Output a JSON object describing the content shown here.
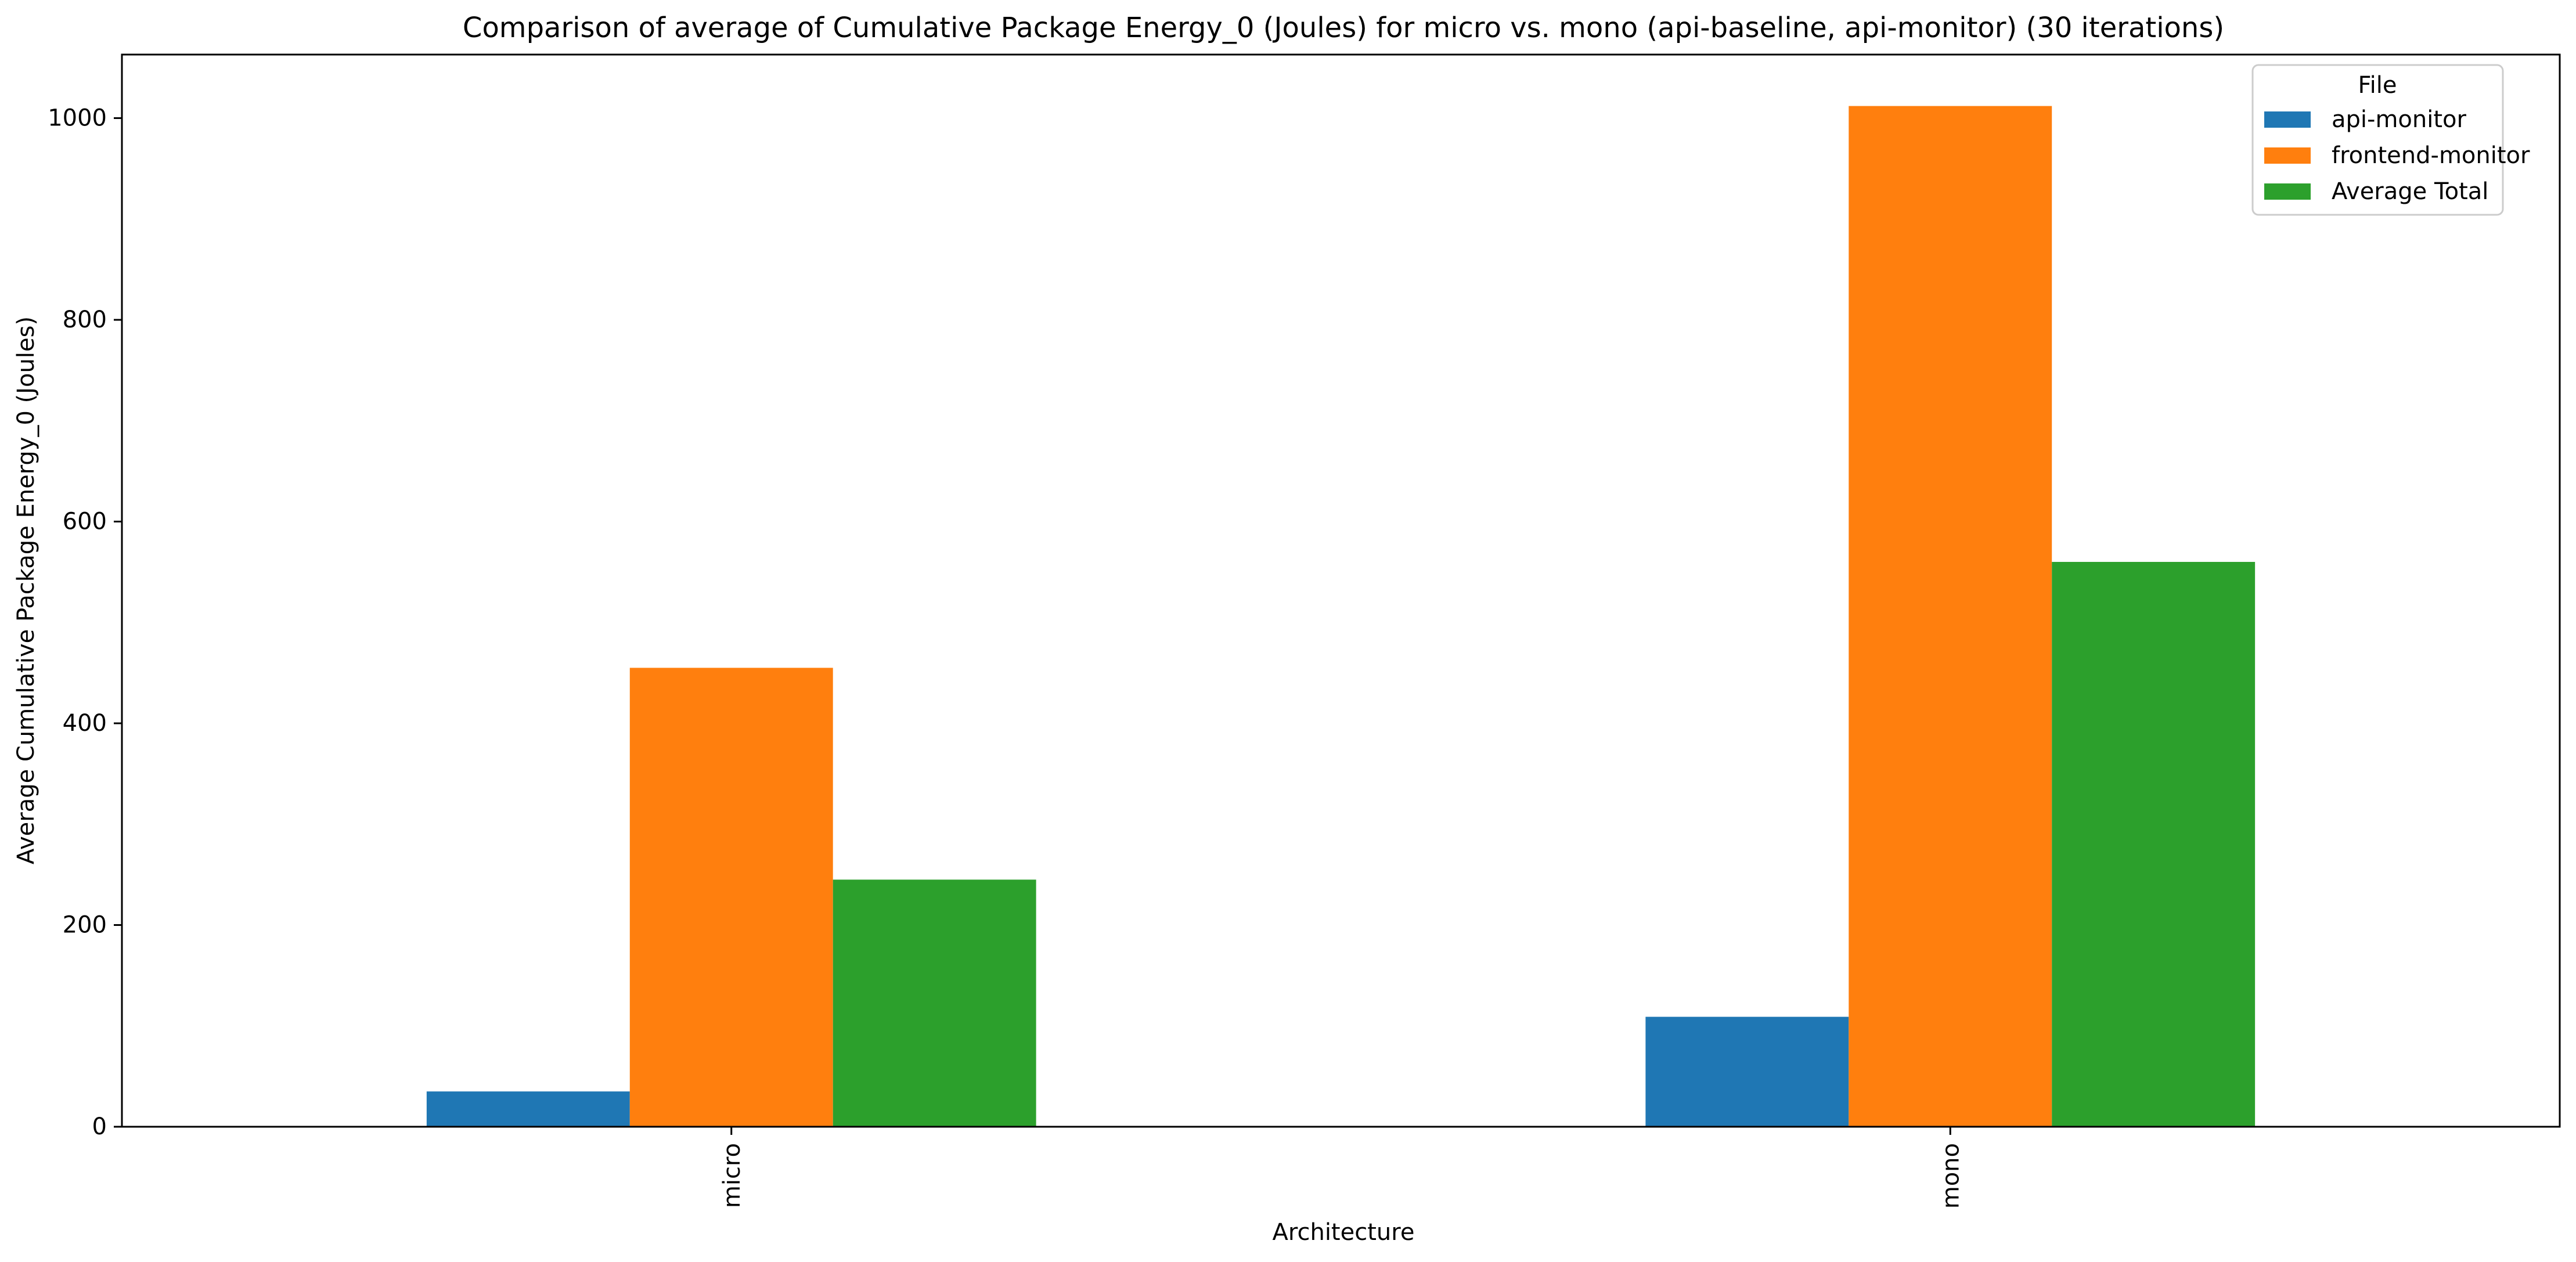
{
  "chart_data": {
    "type": "bar",
    "title": "Comparison of average of Cumulative Package Energy_0 (Joules) for micro vs. mono (api-baseline, api-monitor) (30 iterations)",
    "xlabel": "Architecture",
    "ylabel": "Average Cumulative Package Energy_0 (Joules)",
    "categories": [
      "micro",
      "mono"
    ],
    "ylim": [
      0,
      1063
    ],
    "yticks": [
      0,
      200,
      400,
      600,
      800,
      1000
    ],
    "ytick_labels": [
      "0",
      "200",
      "400",
      "600",
      "800",
      "1000"
    ],
    "legend_title": "File",
    "legend_position": "top-right",
    "series": [
      {
        "name": "api-monitor",
        "color": "#1f77b4",
        "values": [
          35,
          109
        ]
      },
      {
        "name": "frontend-monitor",
        "color": "#ff7f0e",
        "values": [
          455,
          1012
        ]
      },
      {
        "name": "Average Total",
        "color": "#2ca02c",
        "values": [
          245,
          560
        ]
      }
    ]
  }
}
